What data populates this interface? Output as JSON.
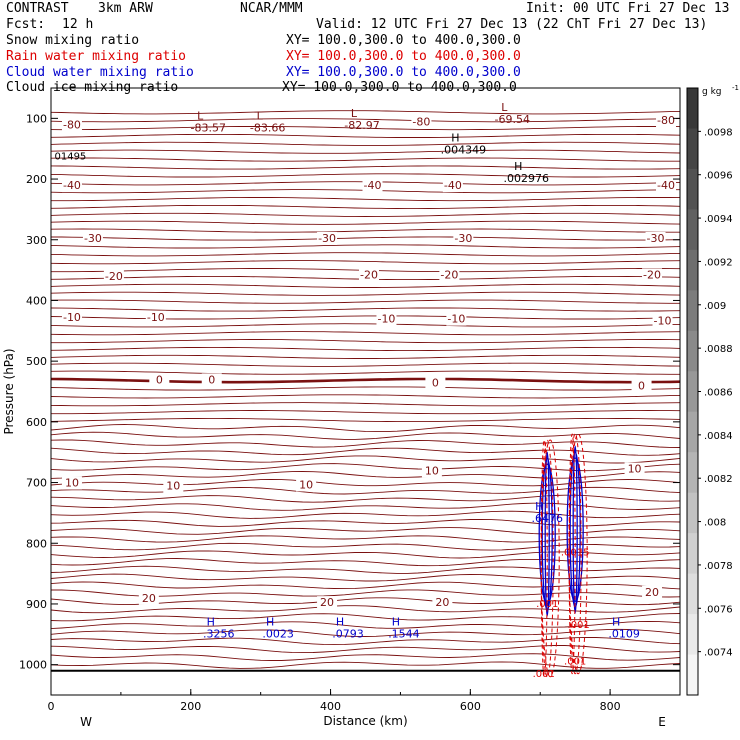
{
  "header": {
    "model": "CONTRAST",
    "run": "3km ARW",
    "org": "NCAR/MMM",
    "init": "Init: 00 UTC Fri 27 Dec 13",
    "fcst_label": "Fcst:",
    "fcst_value": "12 h",
    "valid": "Valid: 12 UTC Fri 27 Dec 13 (22 ChT Fri 27 Dec 13)",
    "legend": [
      {
        "name": "Snow mixing ratio",
        "xy": "XY= 100.0,300.0 to 400.0,300.0",
        "color": "#000000"
      },
      {
        "name": "Rain water mixing ratio",
        "xy": "XY= 100.0,300.0 to 400.0,300.0",
        "color": "#dd0000"
      },
      {
        "name": "Cloud water mixing ratio",
        "xy": "XY= 100.0,300.0 to 400.0,300.0",
        "color": "#0000cc"
      },
      {
        "name": "Cloud ice mixing ratio",
        "xy": "XY= 100.0,300.0 to 400.0,300.0",
        "color": "#000000"
      }
    ]
  },
  "chart_data": {
    "type": "contour",
    "xlabel": "Distance (km)",
    "ylabel": "Pressure (hPa)",
    "xlim": [
      0,
      900
    ],
    "ylim": [
      1050,
      50
    ],
    "x_ticks": [
      0,
      200,
      400,
      600,
      800
    ],
    "y_ticks": [
      100,
      200,
      300,
      400,
      500,
      600,
      700,
      800,
      900,
      1000
    ],
    "x_end_labels": {
      "left": "W",
      "right": "E"
    },
    "temperature_labels": [
      {
        "t": "-80",
        "x": 30,
        "p": 110
      },
      {
        "t": "-80",
        "x": 530,
        "p": 105
      },
      {
        "t": "-80",
        "x": 880,
        "p": 103
      },
      {
        "t": "-40",
        "x": 30,
        "p": 210
      },
      {
        "t": "-40",
        "x": 460,
        "p": 210
      },
      {
        "t": "-40",
        "x": 575,
        "p": 210
      },
      {
        "t": "-40",
        "x": 880,
        "p": 210
      },
      {
        "t": "-30",
        "x": 60,
        "p": 297
      },
      {
        "t": "-30",
        "x": 395,
        "p": 297
      },
      {
        "t": "-30",
        "x": 590,
        "p": 297
      },
      {
        "t": "-30",
        "x": 865,
        "p": 297
      },
      {
        "t": "-20",
        "x": 90,
        "p": 360
      },
      {
        "t": "-20",
        "x": 455,
        "p": 357
      },
      {
        "t": "-20",
        "x": 570,
        "p": 357
      },
      {
        "t": "-20",
        "x": 860,
        "p": 357
      },
      {
        "t": "-10",
        "x": 30,
        "p": 427
      },
      {
        "t": "-10",
        "x": 150,
        "p": 427
      },
      {
        "t": "-10",
        "x": 480,
        "p": 430
      },
      {
        "t": "-10",
        "x": 580,
        "p": 430
      },
      {
        "t": "-10",
        "x": 875,
        "p": 433
      },
      {
        "t": "0",
        "x": 155,
        "p": 530
      },
      {
        "t": "0",
        "x": 230,
        "p": 530
      },
      {
        "t": "0",
        "x": 550,
        "p": 535
      },
      {
        "t": "0",
        "x": 845,
        "p": 540
      },
      {
        "t": "10",
        "x": 30,
        "p": 700
      },
      {
        "t": "10",
        "x": 175,
        "p": 705
      },
      {
        "t": "10",
        "x": 365,
        "p": 703
      },
      {
        "t": "10",
        "x": 545,
        "p": 680
      },
      {
        "t": "10",
        "x": 835,
        "p": 677
      },
      {
        "t": "20",
        "x": 140,
        "p": 890
      },
      {
        "t": "20",
        "x": 395,
        "p": 897
      },
      {
        "t": "20",
        "x": 560,
        "p": 897
      },
      {
        "t": "20",
        "x": 860,
        "p": 880
      }
    ],
    "extrema": [
      {
        "type": "L",
        "value": "-83.57",
        "x": 225,
        "p": 112
      },
      {
        "type": "L",
        "value": "-83.66",
        "x": 310,
        "p": 112
      },
      {
        "type": "L",
        "value": "-82.97",
        "x": 445,
        "p": 108
      },
      {
        "type": "L",
        "value": "-69.54",
        "x": 660,
        "p": 98
      },
      {
        "type": "H",
        "value": ".004349",
        "x": 590,
        "p": 148
      },
      {
        "type": "H",
        "value": ".002976",
        "x": 680,
        "p": 195
      },
      {
        "type": "H",
        "value": ".6476",
        "x": 710,
        "p": 755
      },
      {
        "type": "H",
        "value": ".3256",
        "x": 240,
        "p": 945
      },
      {
        "type": "H",
        "value": ".0023",
        "x": 325,
        "p": 945
      },
      {
        "type": "H",
        "value": ".0793",
        "x": 425,
        "p": 945
      },
      {
        "type": "H",
        "value": ".1544",
        "x": 505,
        "p": 945
      },
      {
        "type": "H",
        "value": ".0109",
        "x": 820,
        "p": 945
      }
    ],
    "misc_labels": [
      {
        "t": "01495",
        "x": 5,
        "p": 168
      },
      {
        "t": ".001",
        "x": 710,
        "p": 905
      },
      {
        "t": ".001",
        "x": 755,
        "p": 940
      },
      {
        "t": ".001",
        "x": 750,
        "p": 1000
      },
      {
        "t": ".001",
        "x": 705,
        "p": 1020
      },
      {
        "t": ".0015",
        "x": 750,
        "p": 820
      }
    ],
    "colorbar": {
      "unit_label": "g kg",
      "unit_exponent": "-1",
      "ticks": [
        ".0098",
        ".0096",
        ".0094",
        ".0092",
        ".009",
        ".0088",
        ".0086",
        ".0084",
        ".0082",
        ".008",
        ".0078",
        ".0076",
        ".0074"
      ],
      "colors": [
        "#383838",
        "#454545",
        "#525252",
        "#606060",
        "#6e6e6e",
        "#7c7c7c",
        "#8a8a8a",
        "#989898",
        "#a6a6a6",
        "#b4b4b4",
        "#c2c2c2",
        "#d0d0d0",
        "#dddddd",
        "#e9e9e9",
        "#f5f5f5"
      ]
    }
  }
}
